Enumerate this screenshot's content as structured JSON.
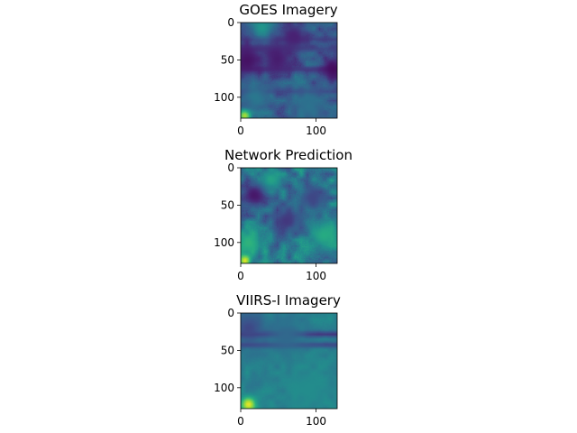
{
  "chart_data": [
    {
      "type": "heatmap",
      "title": "GOES Imagery",
      "xlabel": "",
      "ylabel": "",
      "xlim": [
        0,
        128
      ],
      "ylim": [
        128,
        0
      ],
      "xticks": [
        0,
        100
      ],
      "yticks": [
        0,
        50,
        100
      ],
      "xtick_labels": [
        "0",
        "100"
      ],
      "ytick_labels": [
        "0",
        "50",
        "100"
      ],
      "colormap": "viridis",
      "grid": false,
      "base_value": 0.3,
      "features": [
        {
          "kind": "band",
          "axis": "row",
          "at": 22,
          "width": 3,
          "value": 0.18
        },
        {
          "kind": "band",
          "axis": "row",
          "at": 34,
          "width": 4,
          "value": 0.2
        },
        {
          "kind": "band",
          "axis": "row",
          "at": 62,
          "width": 3,
          "value": 0.16
        },
        {
          "kind": "band",
          "axis": "row",
          "at": 92,
          "width": 3,
          "value": 0.2
        },
        {
          "kind": "blob",
          "x": 8,
          "y": 50,
          "r": 16,
          "value": 0.06
        },
        {
          "kind": "blob",
          "x": 48,
          "y": 48,
          "r": 14,
          "value": 0.1
        },
        {
          "kind": "blob",
          "x": 122,
          "y": 62,
          "r": 12,
          "value": 0.04
        },
        {
          "kind": "blob",
          "x": 70,
          "y": 18,
          "r": 14,
          "value": 0.12
        },
        {
          "kind": "blob",
          "x": 28,
          "y": 6,
          "r": 10,
          "value": 0.52
        },
        {
          "kind": "blob",
          "x": 5,
          "y": 124,
          "r": 6,
          "value": 0.9
        },
        {
          "kind": "blob",
          "x": 90,
          "y": 112,
          "r": 14,
          "value": 0.38
        },
        {
          "kind": "blob",
          "x": 20,
          "y": 100,
          "r": 12,
          "value": 0.4
        }
      ],
      "noise": 0.12,
      "seed": 3
    },
    {
      "type": "heatmap",
      "title": "Network Prediction",
      "xlabel": "",
      "ylabel": "",
      "xlim": [
        0,
        128
      ],
      "ylim": [
        128,
        0
      ],
      "xticks": [
        0,
        100
      ],
      "yticks": [
        0,
        50,
        100
      ],
      "xtick_labels": [
        "0",
        "100"
      ],
      "ytick_labels": [
        "0",
        "50",
        "100"
      ],
      "colormap": "viridis",
      "grid": false,
      "base_value": 0.4,
      "features": [
        {
          "kind": "blob",
          "x": 18,
          "y": 36,
          "r": 14,
          "value": 0.08
        },
        {
          "kind": "blob",
          "x": 60,
          "y": 70,
          "r": 16,
          "value": 0.18
        },
        {
          "kind": "blob",
          "x": 95,
          "y": 40,
          "r": 14,
          "value": 0.22
        },
        {
          "kind": "blob",
          "x": 10,
          "y": 100,
          "r": 14,
          "value": 0.65
        },
        {
          "kind": "blob",
          "x": 110,
          "y": 90,
          "r": 14,
          "value": 0.62
        },
        {
          "kind": "blob",
          "x": 5,
          "y": 124,
          "r": 5,
          "value": 0.95
        },
        {
          "kind": "blob",
          "x": 40,
          "y": 15,
          "r": 10,
          "value": 0.58
        }
      ],
      "noise": 0.18,
      "seed": 7
    },
    {
      "type": "heatmap",
      "title": "VIIRS-I Imagery",
      "xlabel": "",
      "ylabel": "",
      "xlim": [
        0,
        128
      ],
      "ylim": [
        128,
        0
      ],
      "xticks": [
        0,
        100
      ],
      "yticks": [
        0,
        50,
        100
      ],
      "xtick_labels": [
        "0",
        "100"
      ],
      "ytick_labels": [
        "0",
        "50",
        "100"
      ],
      "colormap": "viridis",
      "grid": false,
      "base_value": 0.44,
      "features": [
        {
          "kind": "band",
          "axis": "row",
          "at": 28,
          "width": 3,
          "value": 0.08
        },
        {
          "kind": "band",
          "axis": "row",
          "at": 42,
          "width": 3,
          "value": 0.14
        },
        {
          "kind": "blob",
          "x": 10,
          "y": 20,
          "r": 16,
          "value": 0.22
        },
        {
          "kind": "blob",
          "x": 60,
          "y": 30,
          "r": 18,
          "value": 0.34
        },
        {
          "kind": "blob",
          "x": 10,
          "y": 122,
          "r": 7,
          "value": 0.96
        },
        {
          "kind": "blob",
          "x": 90,
          "y": 100,
          "r": 20,
          "value": 0.48
        }
      ],
      "noise": 0.05,
      "seed": 11
    }
  ]
}
